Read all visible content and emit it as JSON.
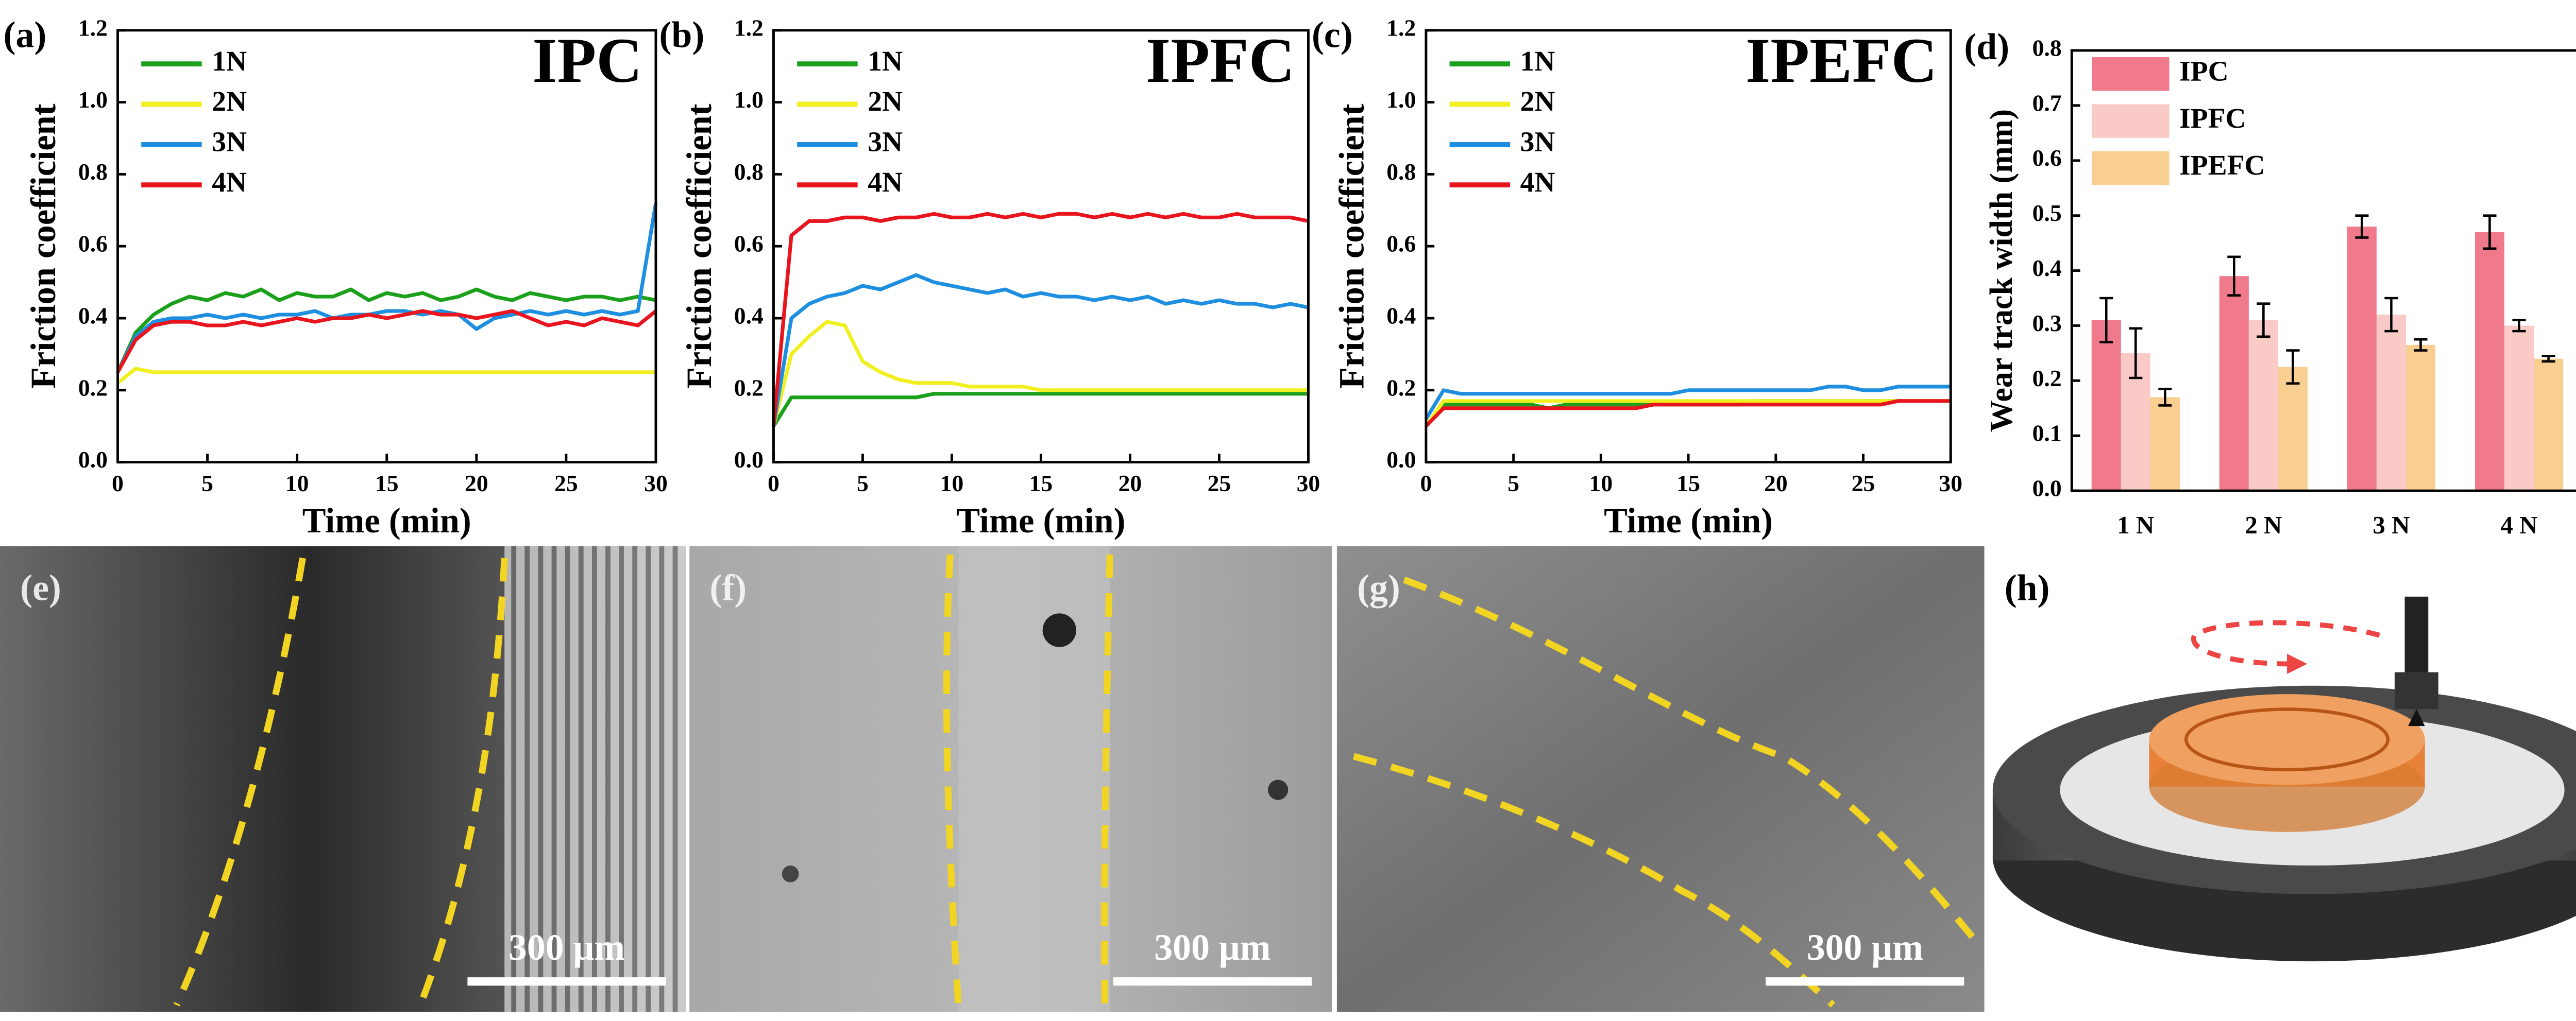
{
  "chart_data": [
    {
      "type": "line",
      "panel_label": "(a)",
      "title": "IPC",
      "x_label": "Time (min)",
      "y_label": "Friction coefficient",
      "x": [
        0,
        1,
        2,
        3,
        4,
        5,
        6,
        7,
        8,
        9,
        10,
        11,
        12,
        13,
        14,
        15,
        16,
        17,
        18,
        19,
        20,
        21,
        22,
        23,
        24,
        25,
        26,
        27,
        28,
        29,
        30
      ],
      "series": [
        {
          "name": "1N",
          "color": "#1aa01a",
          "values": [
            0.25,
            0.36,
            0.41,
            0.44,
            0.46,
            0.45,
            0.47,
            0.46,
            0.48,
            0.45,
            0.47,
            0.46,
            0.46,
            0.48,
            0.45,
            0.47,
            0.46,
            0.47,
            0.45,
            0.46,
            0.48,
            0.46,
            0.45,
            0.47,
            0.46,
            0.45,
            0.46,
            0.46,
            0.45,
            0.46,
            0.45
          ]
        },
        {
          "name": "2N",
          "color": "#f0f020",
          "values": [
            0.22,
            0.26,
            0.25,
            0.25,
            0.25,
            0.25,
            0.25,
            0.25,
            0.25,
            0.25,
            0.25,
            0.25,
            0.25,
            0.25,
            0.25,
            0.25,
            0.25,
            0.25,
            0.25,
            0.25,
            0.25,
            0.25,
            0.25,
            0.25,
            0.25,
            0.25,
            0.25,
            0.25,
            0.25,
            0.25,
            0.25
          ]
        },
        {
          "name": "3N",
          "color": "#1e8fe0",
          "values": [
            0.25,
            0.35,
            0.39,
            0.4,
            0.4,
            0.41,
            0.4,
            0.41,
            0.4,
            0.41,
            0.41,
            0.42,
            0.4,
            0.41,
            0.41,
            0.42,
            0.42,
            0.41,
            0.42,
            0.41,
            0.37,
            0.4,
            0.41,
            0.42,
            0.41,
            0.42,
            0.41,
            0.42,
            0.41,
            0.42,
            0.72
          ]
        },
        {
          "name": "4N",
          "color": "#e8141e",
          "values": [
            0.25,
            0.34,
            0.38,
            0.39,
            0.39,
            0.38,
            0.38,
            0.39,
            0.38,
            0.39,
            0.4,
            0.39,
            0.4,
            0.4,
            0.41,
            0.4,
            0.41,
            0.42,
            0.41,
            0.41,
            0.4,
            0.41,
            0.42,
            0.4,
            0.38,
            0.39,
            0.38,
            0.4,
            0.39,
            0.38,
            0.42
          ]
        }
      ],
      "xlim": [
        0,
        30
      ],
      "xticks": [
        0,
        5,
        10,
        15,
        20,
        25,
        30
      ],
      "ylim": [
        0,
        1.2
      ],
      "yticks": [
        {
          "value": 0,
          "label": "0.0"
        },
        0.2,
        0.4,
        0.6,
        0.8,
        {
          "value": 1,
          "label": "1.0"
        },
        1.2
      ]
    },
    {
      "type": "line",
      "panel_label": "(b)",
      "title": "IPFC",
      "x_label": "Time (min)",
      "y_label": "Friction coefficient",
      "x": [
        0,
        1,
        2,
        3,
        4,
        5,
        6,
        7,
        8,
        9,
        10,
        11,
        12,
        13,
        14,
        15,
        16,
        17,
        18,
        19,
        20,
        21,
        22,
        23,
        24,
        25,
        26,
        27,
        28,
        29,
        30
      ],
      "series": [
        {
          "name": "1N",
          "color": "#1aa01a",
          "values": [
            0.1,
            0.18,
            0.18,
            0.18,
            0.18,
            0.18,
            0.18,
            0.18,
            0.18,
            0.19,
            0.19,
            0.19,
            0.19,
            0.19,
            0.19,
            0.19,
            0.19,
            0.19,
            0.19,
            0.19,
            0.19,
            0.19,
            0.19,
            0.19,
            0.19,
            0.19,
            0.19,
            0.19,
            0.19,
            0.19,
            0.19
          ]
        },
        {
          "name": "2N",
          "color": "#f0f020",
          "values": [
            0.1,
            0.3,
            0.35,
            0.39,
            0.38,
            0.28,
            0.25,
            0.23,
            0.22,
            0.22,
            0.22,
            0.21,
            0.21,
            0.21,
            0.21,
            0.2,
            0.2,
            0.2,
            0.2,
            0.2,
            0.2,
            0.2,
            0.2,
            0.2,
            0.2,
            0.2,
            0.2,
            0.2,
            0.2,
            0.2,
            0.2
          ]
        },
        {
          "name": "3N",
          "color": "#1e8fe0",
          "values": [
            0.1,
            0.4,
            0.44,
            0.46,
            0.47,
            0.49,
            0.48,
            0.5,
            0.52,
            0.5,
            0.49,
            0.48,
            0.47,
            0.48,
            0.46,
            0.47,
            0.46,
            0.46,
            0.45,
            0.46,
            0.45,
            0.46,
            0.44,
            0.45,
            0.44,
            0.45,
            0.44,
            0.44,
            0.43,
            0.44,
            0.43
          ]
        },
        {
          "name": "4N",
          "color": "#e8141e",
          "values": [
            0.1,
            0.63,
            0.67,
            0.67,
            0.68,
            0.68,
            0.67,
            0.68,
            0.68,
            0.69,
            0.68,
            0.68,
            0.69,
            0.68,
            0.69,
            0.68,
            0.69,
            0.69,
            0.68,
            0.69,
            0.68,
            0.69,
            0.68,
            0.69,
            0.68,
            0.68,
            0.69,
            0.68,
            0.68,
            0.68,
            0.67
          ]
        }
      ],
      "xlim": [
        0,
        30
      ],
      "xticks": [
        0,
        5,
        10,
        15,
        20,
        25,
        30
      ],
      "ylim": [
        0,
        1.2
      ],
      "yticks": [
        {
          "value": 0,
          "label": "0.0"
        },
        0.2,
        0.4,
        0.6,
        0.8,
        {
          "value": 1,
          "label": "1.0"
        },
        1.2
      ]
    },
    {
      "type": "line",
      "panel_label": "(c)",
      "title": "IPEFC",
      "x_label": "Time (min)",
      "y_label": "Friction coefficient",
      "x": [
        0,
        1,
        2,
        3,
        4,
        5,
        6,
        7,
        8,
        9,
        10,
        11,
        12,
        13,
        14,
        15,
        16,
        17,
        18,
        19,
        20,
        21,
        22,
        23,
        24,
        25,
        26,
        27,
        28,
        29,
        30
      ],
      "series": [
        {
          "name": "1N",
          "color": "#1aa01a",
          "values": [
            0.1,
            0.16,
            0.16,
            0.16,
            0.16,
            0.16,
            0.16,
            0.15,
            0.16,
            0.16,
            0.16,
            0.16,
            0.16,
            0.16,
            0.16,
            0.16,
            0.16,
            0.16,
            0.16,
            0.17,
            0.17,
            0.17,
            0.17,
            0.17,
            0.17,
            0.17,
            0.17,
            0.17,
            0.17,
            0.17,
            0.17
          ]
        },
        {
          "name": "2N",
          "color": "#f0f020",
          "values": [
            0.1,
            0.17,
            0.17,
            0.17,
            0.17,
            0.17,
            0.17,
            0.17,
            0.17,
            0.17,
            0.17,
            0.17,
            0.17,
            0.17,
            0.17,
            0.17,
            0.17,
            0.17,
            0.17,
            0.17,
            0.17,
            0.17,
            0.17,
            0.17,
            0.17,
            0.17,
            0.17,
            0.17,
            0.17,
            0.17,
            0.17
          ]
        },
        {
          "name": "3N",
          "color": "#1e8fe0",
          "values": [
            0.12,
            0.2,
            0.19,
            0.19,
            0.19,
            0.19,
            0.19,
            0.19,
            0.19,
            0.19,
            0.19,
            0.19,
            0.19,
            0.19,
            0.19,
            0.2,
            0.2,
            0.2,
            0.2,
            0.2,
            0.2,
            0.2,
            0.2,
            0.21,
            0.21,
            0.2,
            0.2,
            0.21,
            0.21,
            0.21,
            0.21
          ]
        },
        {
          "name": "4N",
          "color": "#e8141e",
          "values": [
            0.1,
            0.15,
            0.15,
            0.15,
            0.15,
            0.15,
            0.15,
            0.15,
            0.15,
            0.15,
            0.15,
            0.15,
            0.15,
            0.16,
            0.16,
            0.16,
            0.16,
            0.16,
            0.16,
            0.16,
            0.16,
            0.16,
            0.16,
            0.16,
            0.16,
            0.16,
            0.16,
            0.17,
            0.17,
            0.17,
            0.17
          ]
        }
      ],
      "xlim": [
        0,
        30
      ],
      "xticks": [
        0,
        5,
        10,
        15,
        20,
        25,
        30
      ],
      "ylim": [
        0,
        1.2
      ],
      "yticks": [
        {
          "value": 0,
          "label": "0.0"
        },
        0.2,
        0.4,
        0.6,
        0.8,
        {
          "value": 1,
          "label": "1.0"
        },
        1.2
      ]
    },
    {
      "type": "bar",
      "panel_label": "(d)",
      "y_label": "Wear track width (mm)",
      "categories": [
        "1 N",
        "2 N",
        "3 N",
        "4 N"
      ],
      "series": [
        {
          "name": "IPC",
          "color": "#f0798c",
          "values": [
            0.31,
            0.39,
            0.48,
            0.47
          ],
          "errors": [
            0.04,
            0.035,
            0.02,
            0.03
          ]
        },
        {
          "name": "IPFC",
          "color": "#f9cac6",
          "values": [
            0.25,
            0.31,
            0.32,
            0.3
          ],
          "errors": [
            0.045,
            0.03,
            0.03,
            0.01
          ]
        },
        {
          "name": "IPEFC",
          "color": "#f8cf90",
          "values": [
            0.17,
            0.225,
            0.265,
            0.24
          ],
          "errors": [
            0.015,
            0.03,
            0.01,
            0.005
          ]
        }
      ],
      "ylim": [
        0,
        0.8
      ],
      "yticks": [
        {
          "value": 0,
          "label": "0.0"
        },
        0.1,
        0.2,
        0.3,
        0.4,
        0.5,
        0.6,
        0.7,
        0.8
      ]
    }
  ],
  "images": [
    {
      "panel_label": "(e)",
      "scale_bar": "300 μm"
    },
    {
      "panel_label": "(f)",
      "scale_bar": "300 μm"
    },
    {
      "panel_label": "(g)",
      "scale_bar": "300 μm"
    },
    {
      "panel_label": "(h)"
    }
  ]
}
